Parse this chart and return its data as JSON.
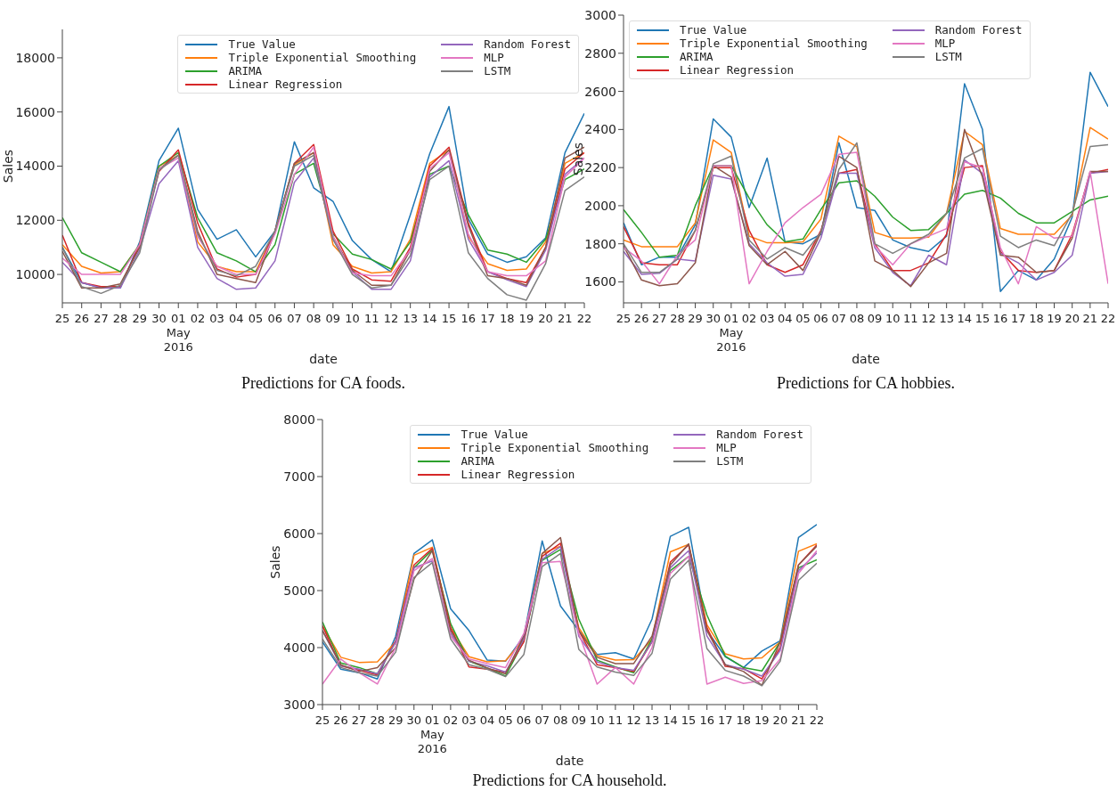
{
  "chart_data": [
    {
      "type": "line",
      "xlabel": "date",
      "ylabel": "Sales",
      "legend": "top right",
      "annotations": [
        "Predictions for CA foods."
      ],
      "x": [
        "2016-04-25",
        "2016-04-26",
        "2016-04-27",
        "2016-04-28",
        "2016-04-29",
        "2016-04-30",
        "2016-05-01",
        "2016-05-02",
        "2016-05-03",
        "2016-05-04",
        "2016-05-05",
        "2016-05-06",
        "2016-05-07",
        "2016-05-08",
        "2016-05-09",
        "2016-05-10",
        "2016-05-11",
        "2016-05-12",
        "2016-05-13",
        "2016-05-14",
        "2016-05-15",
        "2016-05-16",
        "2016-05-17",
        "2016-05-18",
        "2016-05-19",
        "2016-05-20",
        "2016-05-21",
        "2016-05-22"
      ],
      "xlim": [
        "2016-04-25",
        "2016-05-22"
      ],
      "xticks": [
        {
          "value": "2016-04-25",
          "label": "25"
        },
        {
          "value": "2016-04-26",
          "label": "26"
        },
        {
          "value": "2016-04-27",
          "label": "27"
        },
        {
          "value": "2016-04-28",
          "label": "28"
        },
        {
          "value": "2016-04-29",
          "label": "29"
        },
        {
          "value": "2016-04-30",
          "label": "30"
        },
        {
          "value": "2016-05-01",
          "label": "01\nMay\n2016"
        },
        {
          "value": "2016-05-02",
          "label": "02"
        },
        {
          "value": "2016-05-03",
          "label": "03"
        },
        {
          "value": "2016-05-04",
          "label": "04"
        },
        {
          "value": "2016-05-05",
          "label": "05"
        },
        {
          "value": "2016-05-06",
          "label": "06"
        },
        {
          "value": "2016-05-07",
          "label": "07"
        },
        {
          "value": "2016-05-08",
          "label": "08"
        },
        {
          "value": "2016-05-09",
          "label": "09"
        },
        {
          "value": "2016-05-10",
          "label": "10"
        },
        {
          "value": "2016-05-11",
          "label": "11"
        },
        {
          "value": "2016-05-12",
          "label": "12"
        },
        {
          "value": "2016-05-13",
          "label": "13"
        },
        {
          "value": "2016-05-14",
          "label": "14"
        },
        {
          "value": "2016-05-15",
          "label": "15"
        },
        {
          "value": "2016-05-16",
          "label": "16"
        },
        {
          "value": "2016-05-17",
          "label": "17"
        },
        {
          "value": "2016-05-18",
          "label": "18"
        },
        {
          "value": "2016-05-19",
          "label": "19"
        },
        {
          "value": "2016-05-20",
          "label": "20"
        },
        {
          "value": "2016-05-21",
          "label": "21"
        },
        {
          "value": "2016-05-22",
          "label": "22"
        }
      ],
      "ylim": [
        8950,
        19050
      ],
      "yticks": [
        10000,
        12000,
        14000,
        16000,
        18000
      ],
      "series": [
        {
          "name": "True Value",
          "color": "#1f77b4",
          "values": [
            11000,
            9700,
            9500,
            9500,
            11200,
            14200,
            15400,
            12400,
            11300,
            11650,
            10650,
            11600,
            14900,
            13200,
            12700,
            11250,
            10550,
            10100,
            12200,
            14450,
            16200,
            12050,
            10750,
            10450,
            10650,
            11350,
            14500,
            15950
          ]
        },
        {
          "name": "Triple Exponential Smoothing",
          "color": "#ff7f0e",
          "values": [
            11100,
            10300,
            10050,
            10100,
            11100,
            14000,
            14400,
            11200,
            10300,
            10100,
            10100,
            11600,
            14050,
            14500,
            11100,
            10300,
            10050,
            10100,
            11300,
            14100,
            14600,
            11400,
            10400,
            10150,
            10200,
            11200,
            14100,
            14500
          ]
        },
        {
          "name": "ARIMA",
          "color": "#2ca02c",
          "values": [
            12100,
            10800,
            10450,
            10100,
            11100,
            14000,
            14500,
            12100,
            10800,
            10500,
            10100,
            11100,
            13700,
            14100,
            11500,
            10750,
            10550,
            10200,
            11200,
            13700,
            14000,
            12200,
            10900,
            10750,
            10450,
            11300,
            13500,
            13900
          ]
        },
        {
          "name": "Linear Regression",
          "color": "#d62728",
          "values": [
            11450,
            9700,
            9550,
            9550,
            11100,
            13800,
            14600,
            11900,
            10200,
            9900,
            10000,
            11600,
            14100,
            14800,
            11600,
            10200,
            9800,
            9750,
            11000,
            14000,
            14700,
            11900,
            10100,
            9850,
            9700,
            11000,
            13900,
            14500
          ]
        },
        {
          "name": "Random Forest",
          "color": "#9467bd",
          "values": [
            10450,
            9700,
            9500,
            9500,
            10900,
            13350,
            14200,
            11000,
            9850,
            9450,
            9500,
            10500,
            13400,
            14300,
            11300,
            10100,
            9450,
            9450,
            10500,
            13600,
            14200,
            11300,
            10100,
            9800,
            9550,
            10900,
            13700,
            14300
          ]
        },
        {
          "color": "#8c564b",
          "values": [
            10850,
            9500,
            9500,
            9650,
            11000,
            13900,
            14400,
            11600,
            10000,
            9850,
            9700,
            11600,
            14100,
            14500,
            11400,
            10150,
            9600,
            9600,
            10900,
            13800,
            14600,
            11800,
            9950,
            9850,
            9600,
            11000,
            14300,
            14700
          ]
        },
        {
          "name": "MLP",
          "color": "#e377c2",
          "values": [
            10600,
            10000,
            10000,
            10000,
            11100,
            13900,
            14300,
            11400,
            10300,
            10000,
            10000,
            11500,
            13700,
            14700,
            11400,
            10050,
            9950,
            9950,
            10900,
            13900,
            14500,
            11500,
            10100,
            9950,
            9950,
            10500,
            13600,
            14300
          ]
        },
        {
          "name": "LSTM",
          "color": "#7f7f7f",
          "values": [
            11000,
            9550,
            9300,
            9600,
            10800,
            13850,
            14400,
            11500,
            10150,
            9950,
            10300,
            11600,
            14000,
            14400,
            11300,
            10000,
            9500,
            9600,
            10700,
            13500,
            14000,
            10800,
            9850,
            9250,
            9050,
            10400,
            13100,
            13600
          ]
        }
      ]
    },
    {
      "type": "line",
      "xlabel": "date",
      "ylabel": "Sales",
      "legend": "top left",
      "annotations": [
        "Predictions for CA hobbies."
      ],
      "x": [
        "2016-04-25",
        "2016-04-26",
        "2016-04-27",
        "2016-04-28",
        "2016-04-29",
        "2016-04-30",
        "2016-05-01",
        "2016-05-02",
        "2016-05-03",
        "2016-05-04",
        "2016-05-05",
        "2016-05-06",
        "2016-05-07",
        "2016-05-08",
        "2016-05-09",
        "2016-05-10",
        "2016-05-11",
        "2016-05-12",
        "2016-05-13",
        "2016-05-14",
        "2016-05-15",
        "2016-05-16",
        "2016-05-17",
        "2016-05-18",
        "2016-05-19",
        "2016-05-20",
        "2016-05-21",
        "2016-05-22"
      ],
      "xlim": [
        "2016-04-25",
        "2016-05-22"
      ],
      "xticks": [
        {
          "value": "2016-04-25",
          "label": "25"
        },
        {
          "value": "2016-04-26",
          "label": "26"
        },
        {
          "value": "2016-04-27",
          "label": "27"
        },
        {
          "value": "2016-04-28",
          "label": "28"
        },
        {
          "value": "2016-04-29",
          "label": "29"
        },
        {
          "value": "2016-04-30",
          "label": "30"
        },
        {
          "value": "2016-05-01",
          "label": "01\nMay\n2016"
        },
        {
          "value": "2016-05-02",
          "label": "02"
        },
        {
          "value": "2016-05-03",
          "label": "03"
        },
        {
          "value": "2016-05-04",
          "label": "04"
        },
        {
          "value": "2016-05-05",
          "label": "05"
        },
        {
          "value": "2016-05-06",
          "label": "06"
        },
        {
          "value": "2016-05-07",
          "label": "07"
        },
        {
          "value": "2016-05-08",
          "label": "08"
        },
        {
          "value": "2016-05-09",
          "label": "09"
        },
        {
          "value": "2016-05-10",
          "label": "10"
        },
        {
          "value": "2016-05-11",
          "label": "11"
        },
        {
          "value": "2016-05-12",
          "label": "12"
        },
        {
          "value": "2016-05-13",
          "label": "13"
        },
        {
          "value": "2016-05-14",
          "label": "14"
        },
        {
          "value": "2016-05-15",
          "label": "15"
        },
        {
          "value": "2016-05-16",
          "label": "16"
        },
        {
          "value": "2016-05-17",
          "label": "17"
        },
        {
          "value": "2016-05-18",
          "label": "18"
        },
        {
          "value": "2016-05-19",
          "label": "19"
        },
        {
          "value": "2016-05-20",
          "label": "20"
        },
        {
          "value": "2016-05-21",
          "label": "21"
        },
        {
          "value": "2016-05-22",
          "label": "22"
        }
      ],
      "ylim": [
        1490,
        3000
      ],
      "yticks": [
        1600,
        1800,
        2000,
        2200,
        2400,
        2600,
        2800,
        3000
      ],
      "series": [
        {
          "name": "True Value",
          "color": "#1f77b4",
          "values": [
            1910,
            1690,
            1730,
            1730,
            1900,
            2455,
            2360,
            1990,
            2250,
            1810,
            1800,
            1850,
            2330,
            1990,
            1975,
            1820,
            1780,
            1760,
            1840,
            2640,
            2400,
            1550,
            1660,
            1610,
            1720,
            1940,
            2700,
            2520
          ]
        },
        {
          "name": "Triple Exponential Smoothing",
          "color": "#ff7f0e",
          "values": [
            1820,
            1785,
            1785,
            1785,
            1910,
            2345,
            2280,
            1840,
            1805,
            1805,
            1810,
            1930,
            2365,
            2310,
            1860,
            1830,
            1830,
            1835,
            1960,
            2390,
            2320,
            1880,
            1850,
            1850,
            1850,
            1950,
            2410,
            2350
          ]
        },
        {
          "name": "ARIMA",
          "color": "#2ca02c",
          "values": [
            1980,
            1860,
            1730,
            1740,
            2000,
            2210,
            2210,
            2040,
            1900,
            1810,
            1825,
            1980,
            2120,
            2130,
            2050,
            1940,
            1870,
            1875,
            1960,
            2060,
            2080,
            2040,
            1960,
            1910,
            1910,
            1970,
            2030,
            2050
          ]
        },
        {
          "name": "Linear Regression",
          "color": "#d62728",
          "values": [
            1890,
            1700,
            1690,
            1690,
            1870,
            2200,
            2200,
            1870,
            1690,
            1650,
            1690,
            1870,
            2170,
            2190,
            1800,
            1660,
            1660,
            1700,
            1850,
            2200,
            2210,
            1760,
            1660,
            1650,
            1660,
            1850,
            2170,
            2190
          ]
        },
        {
          "name": "Random Forest",
          "color": "#9467bd",
          "values": [
            1760,
            1640,
            1645,
            1720,
            1710,
            2160,
            2140,
            1800,
            1700,
            1630,
            1640,
            1830,
            2170,
            2170,
            1780,
            1650,
            1580,
            1740,
            1690,
            2240,
            2170,
            1750,
            1700,
            1610,
            1650,
            1740,
            2170,
            2180
          ]
        },
        {
          "color": "#8c564b",
          "values": [
            1790,
            1610,
            1580,
            1590,
            1700,
            2210,
            2150,
            1790,
            1690,
            1760,
            1660,
            1860,
            2260,
            2200,
            1710,
            1660,
            1575,
            1700,
            1750,
            2400,
            2150,
            1740,
            1730,
            1650,
            1660,
            1830,
            2180,
            2180
          ]
        },
        {
          "name": "MLP",
          "color": "#e377c2",
          "values": [
            1780,
            1710,
            1590,
            1740,
            1820,
            2210,
            2210,
            1590,
            1760,
            1910,
            1990,
            2060,
            2270,
            2280,
            1790,
            1690,
            1800,
            1840,
            1880,
            2230,
            2200,
            1780,
            1590,
            1890,
            1830,
            1840,
            2180,
            1590
          ]
        },
        {
          "name": "LSTM",
          "color": "#7f7f7f",
          "values": [
            1800,
            1650,
            1650,
            1720,
            1870,
            2220,
            2260,
            1820,
            1720,
            1780,
            1740,
            1860,
            2190,
            2330,
            1800,
            1750,
            1800,
            1850,
            1960,
            2250,
            2300,
            1840,
            1780,
            1820,
            1790,
            1960,
            2310,
            2320
          ]
        }
      ]
    },
    {
      "type": "line",
      "xlabel": "date",
      "ylabel": "Sales",
      "legend": "top right",
      "annotations": [
        "Predictions for CA household."
      ],
      "x": [
        "2016-04-25",
        "2016-04-26",
        "2016-04-27",
        "2016-04-28",
        "2016-04-29",
        "2016-04-30",
        "2016-05-01",
        "2016-05-02",
        "2016-05-03",
        "2016-05-04",
        "2016-05-05",
        "2016-05-06",
        "2016-05-07",
        "2016-05-08",
        "2016-05-09",
        "2016-05-10",
        "2016-05-11",
        "2016-05-12",
        "2016-05-13",
        "2016-05-14",
        "2016-05-15",
        "2016-05-16",
        "2016-05-17",
        "2016-05-18",
        "2016-05-19",
        "2016-05-20",
        "2016-05-21",
        "2016-05-22"
      ],
      "xlim": [
        "2016-04-25",
        "2016-05-22"
      ],
      "xticks": [
        {
          "value": "2016-04-25",
          "label": "25"
        },
        {
          "value": "2016-04-26",
          "label": "26"
        },
        {
          "value": "2016-04-27",
          "label": "27"
        },
        {
          "value": "2016-04-28",
          "label": "28"
        },
        {
          "value": "2016-04-29",
          "label": "29"
        },
        {
          "value": "2016-04-30",
          "label": "30"
        },
        {
          "value": "2016-05-01",
          "label": "01\nMay\n2016"
        },
        {
          "value": "2016-05-02",
          "label": "02"
        },
        {
          "value": "2016-05-03",
          "label": "03"
        },
        {
          "value": "2016-05-04",
          "label": "04"
        },
        {
          "value": "2016-05-05",
          "label": "05"
        },
        {
          "value": "2016-05-06",
          "label": "06"
        },
        {
          "value": "2016-05-07",
          "label": "07"
        },
        {
          "value": "2016-05-08",
          "label": "08"
        },
        {
          "value": "2016-05-09",
          "label": "09"
        },
        {
          "value": "2016-05-10",
          "label": "10"
        },
        {
          "value": "2016-05-11",
          "label": "11"
        },
        {
          "value": "2016-05-12",
          "label": "12"
        },
        {
          "value": "2016-05-13",
          "label": "13"
        },
        {
          "value": "2016-05-14",
          "label": "14"
        },
        {
          "value": "2016-05-15",
          "label": "15"
        },
        {
          "value": "2016-05-16",
          "label": "16"
        },
        {
          "value": "2016-05-17",
          "label": "17"
        },
        {
          "value": "2016-05-18",
          "label": "18"
        },
        {
          "value": "2016-05-19",
          "label": "19"
        },
        {
          "value": "2016-05-20",
          "label": "20"
        },
        {
          "value": "2016-05-21",
          "label": "21"
        },
        {
          "value": "2016-05-22",
          "label": "22"
        }
      ],
      "ylim": [
        3000,
        8000
      ],
      "yticks": [
        3000,
        4000,
        5000,
        6000,
        7000,
        8000
      ],
      "series": [
        {
          "name": "True Value",
          "color": "#1f77b4",
          "values": [
            4100,
            3620,
            3560,
            3450,
            4200,
            5650,
            5890,
            4680,
            4300,
            3780,
            3760,
            4200,
            5870,
            4730,
            4300,
            3880,
            3910,
            3800,
            4500,
            5950,
            6110,
            4300,
            3840,
            3650,
            3940,
            4120,
            5930,
            6160
          ]
        },
        {
          "name": "Triple Exponential Smoothing",
          "color": "#ff7f0e",
          "values": [
            4380,
            3830,
            3740,
            3750,
            4100,
            5620,
            5760,
            4350,
            3840,
            3750,
            3770,
            4150,
            5650,
            5780,
            4350,
            3860,
            3780,
            3790,
            4150,
            5680,
            5810,
            4400,
            3890,
            3800,
            3820,
            4100,
            5690,
            5820
          ]
        },
        {
          "name": "ARIMA",
          "color": "#2ca02c",
          "values": [
            4450,
            3730,
            3650,
            3540,
            4100,
            5400,
            5710,
            4420,
            3760,
            3640,
            3500,
            4120,
            5530,
            5720,
            4500,
            3780,
            3660,
            3560,
            4150,
            5350,
            5600,
            4570,
            3850,
            3650,
            3590,
            4100,
            5400,
            5540
          ]
        },
        {
          "name": "Linear Regression",
          "color": "#d62728",
          "values": [
            4380,
            3680,
            3600,
            3520,
            4120,
            5450,
            5740,
            4350,
            3660,
            3620,
            3570,
            4100,
            5600,
            5830,
            4300,
            3700,
            3650,
            3580,
            4100,
            5500,
            5800,
            4350,
            3670,
            3630,
            3450,
            4000,
            5450,
            5800
          ]
        },
        {
          "name": "Random Forest",
          "color": "#9467bd",
          "values": [
            4300,
            3680,
            3620,
            3540,
            4100,
            5400,
            5520,
            4250,
            3760,
            3680,
            3570,
            4150,
            5550,
            5770,
            4200,
            3750,
            3650,
            3600,
            4100,
            5400,
            5700,
            4200,
            3700,
            3620,
            3500,
            3950,
            5350,
            5660
          ]
        },
        {
          "color": "#8c564b",
          "values": [
            4300,
            3700,
            3580,
            3650,
            4000,
            5200,
            5700,
            4300,
            3780,
            3640,
            3540,
            4200,
            5650,
            5930,
            4300,
            3830,
            3720,
            3720,
            4200,
            5450,
            5820,
            4300,
            3700,
            3580,
            3340,
            4100,
            5450,
            5780
          ]
        },
        {
          "name": "MLP",
          "color": "#e377c2",
          "values": [
            3360,
            3800,
            3560,
            3360,
            4000,
            5350,
            5560,
            4200,
            3800,
            3720,
            3650,
            4250,
            5490,
            5510,
            4250,
            3360,
            3650,
            3360,
            4000,
            5300,
            5600,
            3360,
            3480,
            3370,
            3420,
            3800,
            5300,
            5700
          ]
        },
        {
          "name": "LSTM",
          "color": "#7f7f7f",
          "values": [
            4150,
            3650,
            3560,
            3500,
            3920,
            5230,
            5490,
            4150,
            3700,
            3620,
            3490,
            3880,
            5420,
            5650,
            3970,
            3660,
            3570,
            3510,
            3900,
            5200,
            5530,
            3980,
            3600,
            3500,
            3330,
            3760,
            5180,
            5480
          ]
        }
      ]
    }
  ]
}
